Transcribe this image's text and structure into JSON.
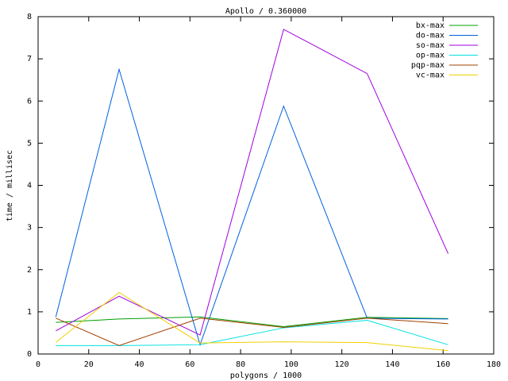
{
  "chart_data": {
    "type": "line",
    "title": "Apollo / 0.360000",
    "x_label": "polygons / 1000",
    "y_label": "time / millisec",
    "x": [
      7,
      32,
      64,
      97,
      130,
      162
    ],
    "series": [
      {
        "name": "bx-max",
        "color": "#00a000",
        "values": [
          0.75,
          0.83,
          0.88,
          0.65,
          0.87,
          0.84
        ]
      },
      {
        "name": "do-max",
        "color": "#0060e0",
        "values": [
          0.88,
          6.75,
          0.22,
          5.88,
          0.85,
          0.83
        ]
      },
      {
        "name": "so-max",
        "color": "#a000e0",
        "values": [
          0.55,
          1.37,
          0.45,
          7.7,
          6.65,
          2.38
        ]
      },
      {
        "name": "op-max",
        "color": "#00e0e0",
        "values": [
          0.2,
          0.2,
          0.22,
          0.62,
          0.8,
          0.22
        ]
      },
      {
        "name": "pqp-max",
        "color": "#a04000",
        "values": [
          0.85,
          0.2,
          0.85,
          0.63,
          0.85,
          0.72
        ]
      },
      {
        "name": "vc-max",
        "color": "#f0d000",
        "values": [
          0.28,
          1.46,
          0.26,
          0.29,
          0.27,
          0.08
        ]
      }
    ],
    "xlim": [
      0,
      180
    ],
    "xticks": [
      0,
      20,
      40,
      60,
      80,
      100,
      120,
      140,
      160,
      180
    ],
    "ylim": [
      0,
      8
    ],
    "yticks": [
      0,
      1,
      2,
      3,
      4,
      5,
      6,
      7,
      8
    ],
    "grid": false,
    "legend": "top-right"
  }
}
